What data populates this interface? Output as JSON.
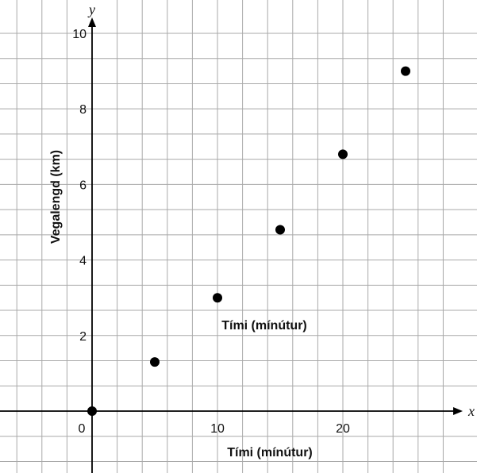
{
  "chart_data": {
    "type": "scatter",
    "xlabel": "Tími (mínútur)",
    "xlabel_inside": "Tími (mínútur)",
    "ylabel": "Vegalengd (km)",
    "x_axis_letter": "x",
    "y_axis_letter": "y",
    "xlim": [
      -7.3,
      29.5
    ],
    "ylim": [
      -2.4,
      10.6
    ],
    "grid": true,
    "x_grid_step": 2,
    "y_grid_step": 0.6667,
    "x_ticks": [
      0,
      10,
      20
    ],
    "x_tick_labels": [
      "0",
      "10",
      "20"
    ],
    "y_ticks": [
      2,
      4,
      6,
      8,
      10
    ],
    "y_tick_labels": [
      "2",
      "4",
      "6",
      "8",
      "10"
    ],
    "marker_color": "#000000",
    "series": [
      {
        "x": [
          0,
          5,
          10,
          15,
          20,
          25
        ],
        "y": [
          0,
          1.3,
          3.0,
          4.8,
          6.8,
          9.0
        ]
      }
    ]
  }
}
